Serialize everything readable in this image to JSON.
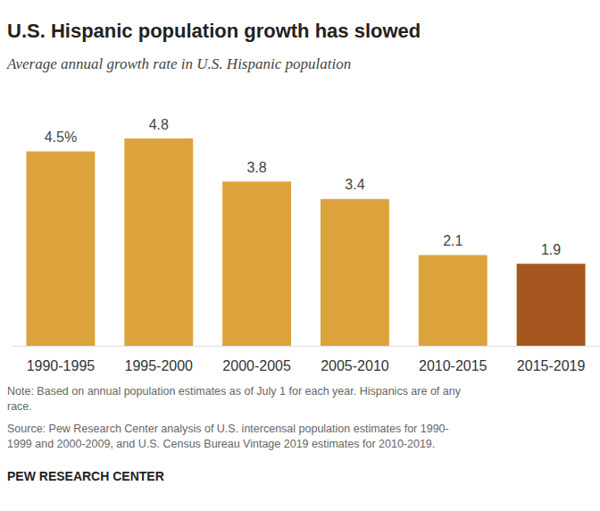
{
  "chart_data": {
    "type": "bar",
    "title": "U.S. Hispanic population growth has slowed",
    "subtitle": "Average annual growth rate in U.S. Hispanic population",
    "categories": [
      "1990-1995",
      "1995-2000",
      "2000-2005",
      "2005-2010",
      "2010-2015",
      "2015-2019"
    ],
    "values": [
      4.5,
      4.8,
      3.8,
      3.4,
      2.1,
      1.9
    ],
    "value_labels": [
      "4.5%",
      "4.8",
      "3.8",
      "3.4",
      "2.1",
      "1.9"
    ],
    "colors": [
      "#dca33c",
      "#dca33c",
      "#dca33c",
      "#dca33c",
      "#dca33c",
      "#a6561f"
    ],
    "ylim": [
      0,
      4.8
    ],
    "data_labels": true,
    "tick_labels": "x",
    "grid": false,
    "note": [
      "Note: Based on annual population estimates as of July 1 for each year. Hispanics are of any",
      "race."
    ],
    "source": [
      "Source: Pew Research Center analysis of U.S. intercensal population estimates for 1990-",
      "1999 and 2000-2009, and U.S. Census Bureau Vintage 2019 estimates for 2010-2019."
    ],
    "credit": "PEW RESEARCH CENTER"
  }
}
